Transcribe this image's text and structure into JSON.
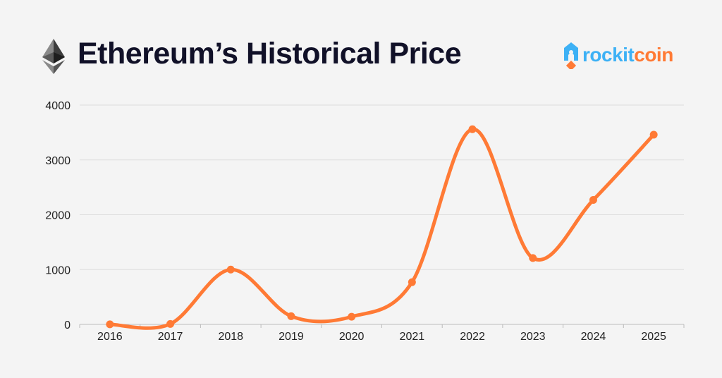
{
  "title": "Ethereum’s Historical Price",
  "logo": {
    "part1": "rockit",
    "part2": "coin"
  },
  "colors": {
    "line": "#ff7a35",
    "grid": "#dddddd",
    "title": "#111128",
    "logo_blue": "#3db1f5",
    "logo_orange": "#ff7a35"
  },
  "chart_data": {
    "type": "line",
    "title": "Ethereum’s Historical Price",
    "xlabel": "",
    "ylabel": "",
    "categories": [
      "2016",
      "2017",
      "2018",
      "2019",
      "2020",
      "2021",
      "2022",
      "2023",
      "2024",
      "2025"
    ],
    "values": [
      1,
      8,
      1000,
      150,
      140,
      770,
      3560,
      1210,
      2270,
      3460
    ],
    "ylim": [
      0,
      4000
    ],
    "yticks": [
      "0",
      "1000",
      "2000",
      "3000",
      "4000"
    ],
    "grid": true,
    "smooth": true
  }
}
